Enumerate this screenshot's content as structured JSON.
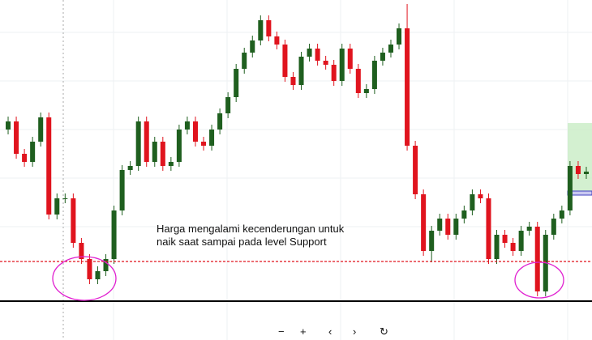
{
  "chart_data": {
    "type": "candlestick",
    "annotation": [
      "Harga mengalami kecenderungan untuk",
      "naik saat sampai pada level Support"
    ],
    "ylim": [
      0,
      420
    ],
    "up_color": "#1f5f1f",
    "down_color": "#e0141e",
    "support_level": 97,
    "support_color": "#e0141e",
    "base_level": 48,
    "candles": [
      [
        260,
        276,
        254,
        270
      ],
      [
        270,
        276,
        224,
        230
      ],
      [
        230,
        236,
        214,
        220
      ],
      [
        220,
        251,
        214,
        245
      ],
      [
        245,
        281,
        239,
        275
      ],
      [
        275,
        281,
        149,
        155
      ],
      [
        155,
        181,
        149,
        175
      ],
      [
        175,
        181,
        169,
        175
      ],
      [
        175,
        181,
        114,
        120
      ],
      [
        120,
        126,
        94,
        100
      ],
      [
        100,
        106,
        69,
        75
      ],
      [
        75,
        91,
        69,
        85
      ],
      [
        85,
        106,
        79,
        100
      ],
      [
        100,
        166,
        94,
        160
      ],
      [
        160,
        216,
        154,
        210
      ],
      [
        210,
        221,
        204,
        215
      ],
      [
        215,
        276,
        209,
        270
      ],
      [
        270,
        276,
        214,
        220
      ],
      [
        220,
        251,
        214,
        245
      ],
      [
        245,
        251,
        209,
        215
      ],
      [
        215,
        226,
        209,
        220
      ],
      [
        220,
        266,
        214,
        260
      ],
      [
        260,
        276,
        254,
        270
      ],
      [
        270,
        276,
        239,
        245
      ],
      [
        245,
        251,
        234,
        240
      ],
      [
        240,
        266,
        234,
        260
      ],
      [
        260,
        286,
        254,
        280
      ],
      [
        280,
        306,
        274,
        300
      ],
      [
        300,
        341,
        294,
        335
      ],
      [
        335,
        361,
        329,
        355
      ],
      [
        355,
        376,
        349,
        370
      ],
      [
        370,
        401,
        364,
        395
      ],
      [
        395,
        401,
        369,
        375
      ],
      [
        375,
        381,
        359,
        365
      ],
      [
        365,
        371,
        319,
        325
      ],
      [
        325,
        331,
        309,
        315
      ],
      [
        315,
        356,
        309,
        350
      ],
      [
        350,
        366,
        344,
        360
      ],
      [
        360,
        366,
        339,
        345
      ],
      [
        345,
        351,
        334,
        340
      ],
      [
        340,
        346,
        314,
        320
      ],
      [
        320,
        366,
        314,
        360
      ],
      [
        360,
        366,
        329,
        335
      ],
      [
        335,
        341,
        299,
        305
      ],
      [
        305,
        316,
        299,
        310
      ],
      [
        310,
        351,
        304,
        345
      ],
      [
        345,
        361,
        339,
        355
      ],
      [
        355,
        371,
        349,
        365
      ],
      [
        365,
        391,
        359,
        385
      ],
      [
        385,
        415,
        234,
        240
      ],
      [
        240,
        246,
        174,
        180
      ],
      [
        180,
        186,
        104,
        110
      ],
      [
        110,
        141,
        96,
        135
      ],
      [
        135,
        156,
        129,
        150
      ],
      [
        150,
        156,
        124,
        130
      ],
      [
        130,
        156,
        124,
        150
      ],
      [
        150,
        166,
        144,
        160
      ],
      [
        160,
        186,
        154,
        180
      ],
      [
        180,
        186,
        169,
        175
      ],
      [
        175,
        181,
        94,
        100
      ],
      [
        100,
        136,
        94,
        130
      ],
      [
        130,
        136,
        114,
        120
      ],
      [
        120,
        126,
        104,
        110
      ],
      [
        110,
        141,
        104,
        135
      ],
      [
        135,
        146,
        129,
        140
      ],
      [
        140,
        146,
        54,
        60
      ],
      [
        60,
        136,
        54,
        130
      ],
      [
        130,
        156,
        124,
        150
      ],
      [
        150,
        166,
        144,
        160
      ],
      [
        160,
        221,
        154,
        215
      ],
      [
        215,
        221,
        199,
        205
      ],
      [
        205,
        214,
        199,
        208
      ]
    ]
  }
}
